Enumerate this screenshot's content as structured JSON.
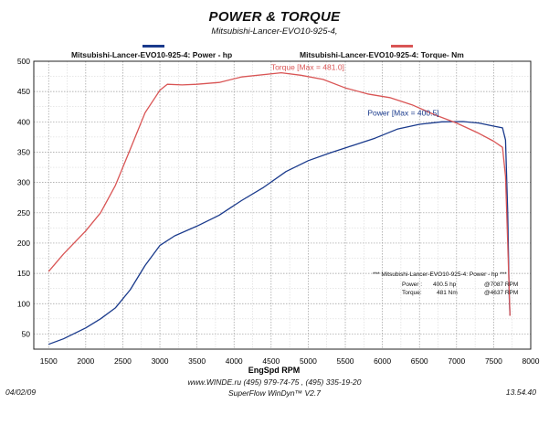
{
  "chart_data": {
    "type": "line",
    "title": "POWER & TORQUE",
    "subtitle": "Mitsubishi-Lancer-EVO10-925-4,",
    "xlabel": "EngSpd  RPM",
    "ylabel": "",
    "xlim": [
      1300,
      8000
    ],
    "ylim": [
      25,
      500
    ],
    "x_ticks": [
      1500,
      2000,
      2500,
      3000,
      3500,
      4000,
      4500,
      5000,
      5500,
      6000,
      6500,
      7000,
      7500,
      8000
    ],
    "y_ticks": [
      50,
      100,
      150,
      200,
      250,
      300,
      350,
      400,
      450,
      500
    ],
    "grid": true,
    "series": [
      {
        "name": "Mitsubishi-Lancer-EVO10-925-4: Power -  hp",
        "color": "#1a3a8c",
        "points": [
          [
            1500,
            33
          ],
          [
            1700,
            42
          ],
          [
            2000,
            60
          ],
          [
            2200,
            75
          ],
          [
            2400,
            93
          ],
          [
            2600,
            123
          ],
          [
            2800,
            163
          ],
          [
            3000,
            196
          ],
          [
            3200,
            212
          ],
          [
            3500,
            228
          ],
          [
            3800,
            246
          ],
          [
            4100,
            270
          ],
          [
            4400,
            292
          ],
          [
            4700,
            318
          ],
          [
            5000,
            336
          ],
          [
            5300,
            349
          ],
          [
            5600,
            361
          ],
          [
            5900,
            373
          ],
          [
            6200,
            388
          ],
          [
            6500,
            396
          ],
          [
            6800,
            400
          ],
          [
            7087,
            400.5
          ],
          [
            7300,
            398
          ],
          [
            7500,
            393
          ],
          [
            7620,
            390
          ],
          [
            7660,
            370
          ],
          [
            7690,
            250
          ],
          [
            7710,
            110
          ],
          [
            7720,
            80
          ]
        ],
        "annotation": "Power  [Max = 400.5]"
      },
      {
        "name": "Mitsubishi-Lancer-EVO10-925-4: Torque-  Nm",
        "color": "#d95555",
        "points": [
          [
            1500,
            153
          ],
          [
            1700,
            182
          ],
          [
            2000,
            220
          ],
          [
            2200,
            250
          ],
          [
            2400,
            295
          ],
          [
            2600,
            355
          ],
          [
            2800,
            415
          ],
          [
            3000,
            452
          ],
          [
            3100,
            462
          ],
          [
            3300,
            461
          ],
          [
            3500,
            462
          ],
          [
            3800,
            465
          ],
          [
            4100,
            474
          ],
          [
            4637,
            481
          ],
          [
            4900,
            477
          ],
          [
            5200,
            470
          ],
          [
            5500,
            456
          ],
          [
            5800,
            446
          ],
          [
            6100,
            440
          ],
          [
            6400,
            428
          ],
          [
            6700,
            412
          ],
          [
            7000,
            398
          ],
          [
            7300,
            381
          ],
          [
            7500,
            368
          ],
          [
            7620,
            358
          ],
          [
            7660,
            310
          ],
          [
            7690,
            200
          ],
          [
            7720,
            80
          ]
        ],
        "annotation": "Torque  [Max = 481.0]"
      }
    ],
    "summary_box": {
      "header": "*** Mitsubishi-Lancer-EVO10-925-4: Power -  hp  ***",
      "rows": [
        {
          "label": "Power :",
          "value": "400.5 hp",
          "at": "@7087 RPM"
        },
        {
          "label": "Torque:",
          "value": "481 Nm",
          "at": "@4637 RPM"
        }
      ]
    }
  },
  "footer": {
    "date": "04/02/09",
    "website": "www.WINDE.ru  (495) 979-74-75 , (495) 335-19-20",
    "software": "SuperFlow WinDyn™ V2.7",
    "time": "13.54.40"
  }
}
